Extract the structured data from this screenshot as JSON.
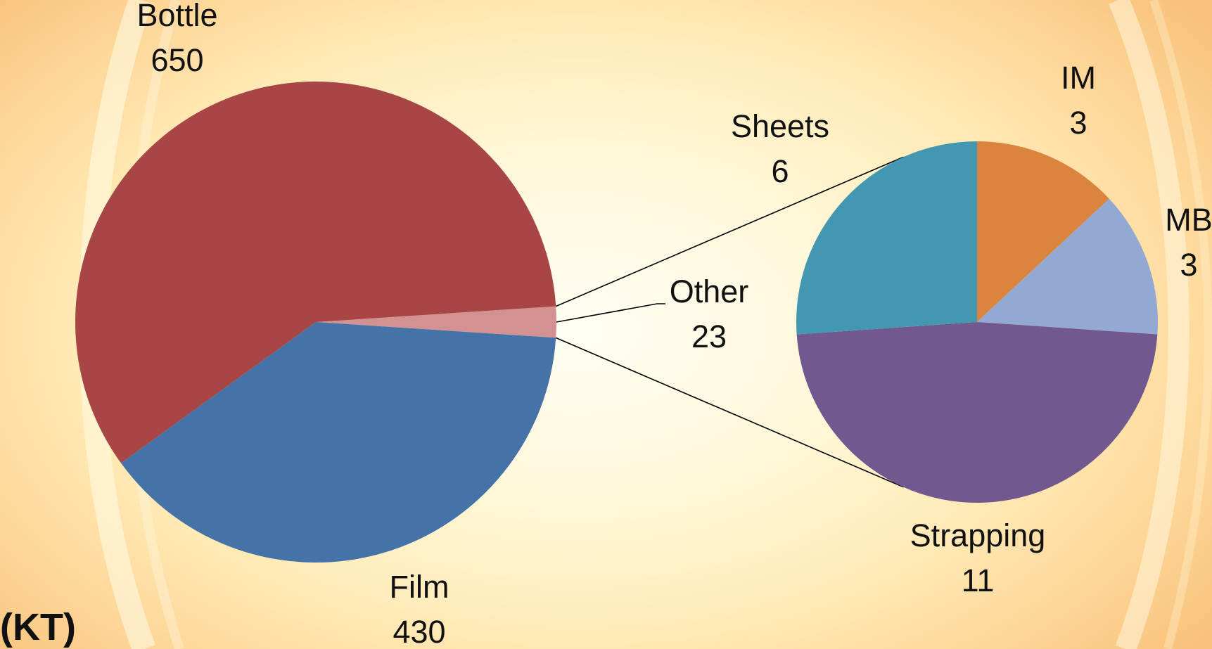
{
  "unit_label": "(KT)",
  "colors": {
    "bottle": "#a84545",
    "film": "#4572a7",
    "other": "#d39191",
    "sheets": "#4497b0",
    "im": "#db843d",
    "mb": "#93a9d3",
    "strapping": "#71588f",
    "connector": "#000000"
  },
  "chart_data": {
    "type": "pie",
    "subtype": "pie-of-pie",
    "primary": {
      "slices": [
        {
          "key": "bottle",
          "label": "Bottle",
          "value": 650
        },
        {
          "key": "film",
          "label": "Film",
          "value": 430
        },
        {
          "key": "other",
          "label": "Other",
          "value": 23
        }
      ]
    },
    "secondary": {
      "breakdown_of": "Other",
      "slices": [
        {
          "key": "im",
          "label": "IM",
          "value": 3
        },
        {
          "key": "mb",
          "label": "MB",
          "value": 3
        },
        {
          "key": "strapping",
          "label": "Strapping",
          "value": 11
        },
        {
          "key": "sheets",
          "label": "Sheets",
          "value": 6
        }
      ]
    }
  }
}
